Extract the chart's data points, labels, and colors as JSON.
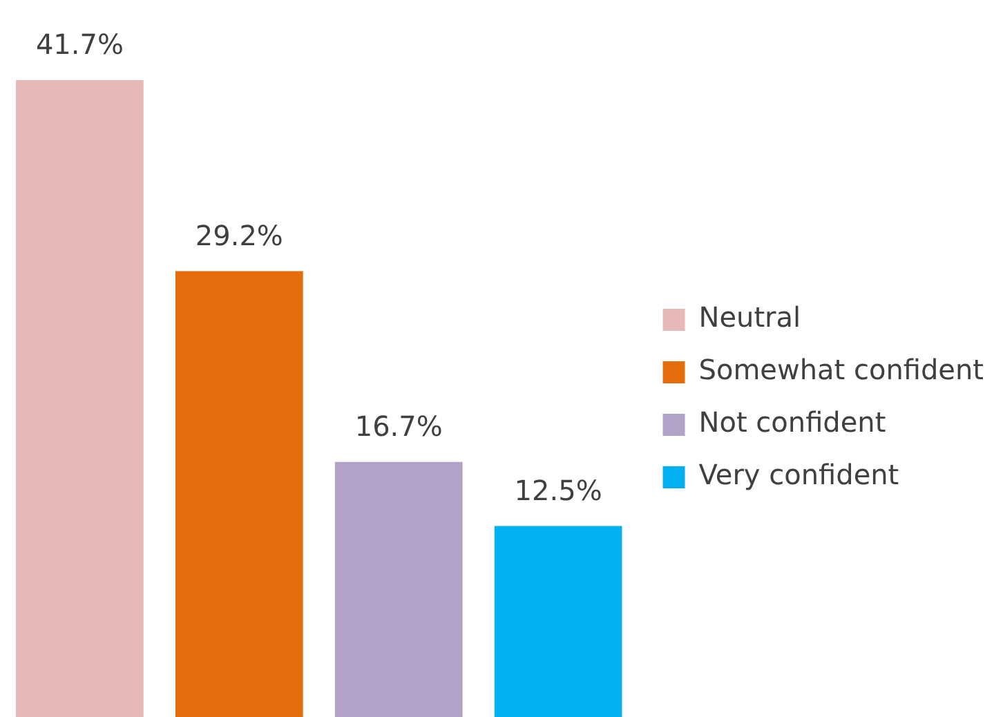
{
  "chart_data": {
    "type": "bar",
    "categories": [
      null,
      null,
      null,
      null
    ],
    "series": [
      {
        "name": "Neutral",
        "color": "#e6b9b8",
        "values": [
          41.7,
          null,
          null,
          null
        ],
        "value_labels": [
          "41.7%",
          null,
          null,
          null
        ]
      },
      {
        "name": "Somewhat confident",
        "color": "#e46c0a",
        "values": [
          null,
          29.2,
          null,
          null
        ],
        "value_labels": [
          null,
          "29.2%",
          null,
          null
        ]
      },
      {
        "name": "Not confident",
        "color": "#b3a2c7",
        "values": [
          null,
          null,
          16.7,
          null
        ],
        "value_labels": [
          null,
          null,
          "16.7%",
          null
        ]
      },
      {
        "name": "Very confident",
        "color": "#00b0f0",
        "values": [
          null,
          null,
          null,
          12.5
        ],
        "value_labels": [
          null,
          null,
          null,
          "12.5%"
        ]
      }
    ],
    "stacked": true,
    "legend": "right",
    "tick_labels": false
  }
}
